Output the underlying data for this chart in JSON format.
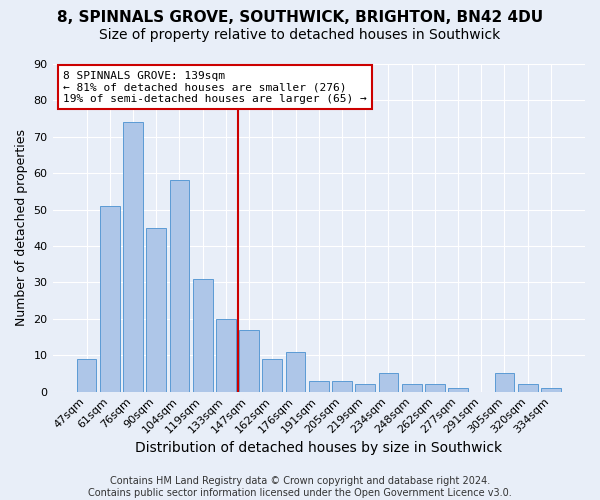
{
  "title": "8, SPINNALS GROVE, SOUTHWICK, BRIGHTON, BN42 4DU",
  "subtitle": "Size of property relative to detached houses in Southwick",
  "xlabel": "Distribution of detached houses by size in Southwick",
  "ylabel": "Number of detached properties",
  "bar_labels": [
    "47sqm",
    "61sqm",
    "76sqm",
    "90sqm",
    "104sqm",
    "119sqm",
    "133sqm",
    "147sqm",
    "162sqm",
    "176sqm",
    "191sqm",
    "205sqm",
    "219sqm",
    "234sqm",
    "248sqm",
    "262sqm",
    "277sqm",
    "291sqm",
    "305sqm",
    "320sqm",
    "334sqm"
  ],
  "bar_values": [
    9,
    51,
    74,
    45,
    58,
    31,
    20,
    17,
    9,
    11,
    3,
    3,
    2,
    5,
    2,
    2,
    1,
    0,
    5,
    2,
    1
  ],
  "bar_color": "#aec6e8",
  "bar_edge_color": "#5b9bd5",
  "background_color": "#e8eef8",
  "grid_color": "#ffffff",
  "vline_x": 6.5,
  "vline_color": "#cc0000",
  "annotation_text": "8 SPINNALS GROVE: 139sqm\n← 81% of detached houses are smaller (276)\n19% of semi-detached houses are larger (65) →",
  "annotation_box_color": "#ffffff",
  "annotation_box_edge": "#cc0000",
  "ylim": [
    0,
    90
  ],
  "yticks": [
    0,
    10,
    20,
    30,
    40,
    50,
    60,
    70,
    80,
    90
  ],
  "footnote": "Contains HM Land Registry data © Crown copyright and database right 2024.\nContains public sector information licensed under the Open Government Licence v3.0.",
  "title_fontsize": 11,
  "subtitle_fontsize": 10,
  "xlabel_fontsize": 10,
  "ylabel_fontsize": 9,
  "tick_fontsize": 8,
  "annot_fontsize": 8,
  "footnote_fontsize": 7
}
